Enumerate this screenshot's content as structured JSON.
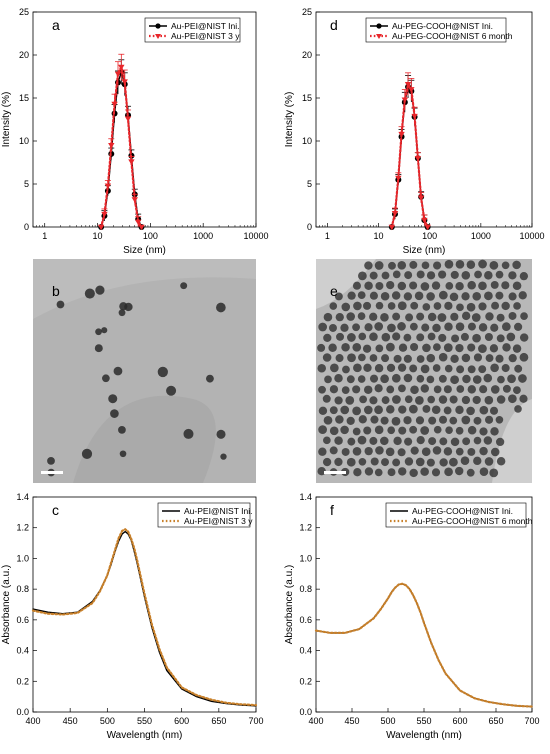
{
  "chart_data": [
    {
      "type": "line",
      "panel": "a",
      "xscale": "log",
      "xlabel": "Size (nm)",
      "ylabel": "Intensity (%)",
      "xlim": [
        0.6,
        10000
      ],
      "ylim": [
        0,
        25
      ],
      "xticks": [
        1,
        10,
        100,
        1000,
        10000
      ],
      "yticks": [
        0,
        5,
        10,
        15,
        20,
        25
      ],
      "legend": "top-left",
      "series": [
        {
          "name": "Au-PEI@NIST Ini.",
          "color": "#000000",
          "style": "solid-circle",
          "x": [
            11.7,
            13.5,
            15.7,
            18.2,
            21,
            24.4,
            28.2,
            32.7,
            37.8,
            43.8,
            50.7,
            58.8,
            68.1
          ],
          "y": [
            0,
            1.3,
            4.2,
            8.5,
            13.2,
            16.8,
            18.0,
            16.6,
            13.0,
            8.3,
            3.8,
            0.9,
            0
          ]
        },
        {
          "name": "Au-PEI@NIST 3 y",
          "color": "#e8262b",
          "style": "dotted-triangle",
          "x": [
            11.7,
            13.5,
            15.7,
            18.2,
            21,
            24.4,
            28.2,
            32.7,
            37.8,
            43.8,
            50.7,
            58.8,
            68.1
          ],
          "y": [
            0,
            1.5,
            4.8,
            9.5,
            14.3,
            17.8,
            18.6,
            16.9,
            12.6,
            7.6,
            3.2,
            0.6,
            0
          ]
        }
      ]
    },
    {
      "type": "line",
      "panel": "d",
      "xscale": "log",
      "xlabel": "Size (nm)",
      "ylabel": "Intensity (%)",
      "xlim": [
        0.6,
        10000
      ],
      "ylim": [
        0,
        25
      ],
      "xticks": [
        1,
        10,
        100,
        1000,
        10000
      ],
      "yticks": [
        0,
        5,
        10,
        15,
        20,
        25
      ],
      "legend": "top-left",
      "series": [
        {
          "name": "Au-PEG-COOH@NIST Ini.",
          "color": "#000000",
          "style": "solid-circle",
          "x": [
            18.2,
            21,
            24.4,
            28.2,
            32.7,
            37.8,
            43.8,
            50.7,
            58.8,
            68.1,
            78.8,
            91.3
          ],
          "y": [
            0,
            1.5,
            5.5,
            10.5,
            14.5,
            16.3,
            15.8,
            12.8,
            8.0,
            3.5,
            0.8,
            0
          ]
        },
        {
          "name": "Au-PEG-COOH@NIST 6 month",
          "color": "#e8262b",
          "style": "dotted-triangle",
          "x": [
            18.2,
            21,
            24.4,
            28.2,
            32.7,
            37.8,
            43.8,
            50.7,
            58.8,
            68.1,
            78.8,
            91.3
          ],
          "y": [
            0,
            1.6,
            5.7,
            10.8,
            14.8,
            16.6,
            16.0,
            12.9,
            8.0,
            3.4,
            0.8,
            0
          ]
        }
      ]
    },
    {
      "type": "line",
      "panel": "c",
      "xscale": "linear",
      "xlabel": "Wavelength (nm)",
      "ylabel": "Absorbance (a.u.)",
      "xlim": [
        400,
        700
      ],
      "ylim": [
        0,
        1.4
      ],
      "xticks": [
        400,
        450,
        500,
        550,
        600,
        650,
        700
      ],
      "yticks": [
        0.0,
        0.2,
        0.4,
        0.6,
        0.8,
        1.0,
        1.2,
        1.4
      ],
      "legend": "top-right",
      "series": [
        {
          "name": "Au-PEI@NIST Ini.",
          "color": "#000000",
          "style": "solid",
          "x": [
            400,
            420,
            440,
            460,
            480,
            490,
            500,
            505,
            510,
            515,
            520,
            524,
            528,
            532,
            536,
            540,
            545,
            550,
            560,
            570,
            580,
            600,
            620,
            640,
            660,
            680,
            700
          ],
          "y": [
            0.67,
            0.65,
            0.64,
            0.65,
            0.72,
            0.79,
            0.89,
            0.96,
            1.04,
            1.11,
            1.16,
            1.175,
            1.16,
            1.12,
            1.05,
            0.97,
            0.86,
            0.75,
            0.55,
            0.39,
            0.27,
            0.15,
            0.1,
            0.07,
            0.055,
            0.045,
            0.04
          ]
        },
        {
          "name": "Au-PEI@NIST 3 y",
          "color": "#c8802a",
          "style": "dotted",
          "x": [
            400,
            420,
            440,
            460,
            480,
            490,
            500,
            505,
            510,
            515,
            520,
            524,
            528,
            532,
            536,
            540,
            545,
            550,
            560,
            570,
            580,
            600,
            620,
            640,
            660,
            680,
            700
          ],
          "y": [
            0.66,
            0.64,
            0.635,
            0.645,
            0.71,
            0.785,
            0.89,
            0.97,
            1.05,
            1.13,
            1.18,
            1.19,
            1.175,
            1.13,
            1.07,
            0.99,
            0.88,
            0.77,
            0.57,
            0.41,
            0.29,
            0.16,
            0.11,
            0.08,
            0.06,
            0.05,
            0.045
          ]
        }
      ]
    },
    {
      "type": "line",
      "panel": "f",
      "xscale": "linear",
      "xlabel": "Wavelength (nm)",
      "ylabel": "Absorbance (a.u.)",
      "xlim": [
        400,
        700
      ],
      "ylim": [
        0,
        1.4
      ],
      "xticks": [
        400,
        450,
        500,
        550,
        600,
        650,
        700
      ],
      "yticks": [
        0.0,
        0.2,
        0.4,
        0.6,
        0.8,
        1.0,
        1.2,
        1.4
      ],
      "legend": "top-right",
      "series": [
        {
          "name": "Au-PEG-COOH@NIST Ini.",
          "color": "#000000",
          "style": "solid",
          "x": [
            400,
            420,
            440,
            460,
            480,
            490,
            500,
            505,
            510,
            515,
            520,
            525,
            530,
            535,
            540,
            545,
            550,
            560,
            570,
            580,
            600,
            620,
            640,
            660,
            680,
            700
          ],
          "y": [
            0.53,
            0.515,
            0.515,
            0.54,
            0.61,
            0.67,
            0.74,
            0.78,
            0.81,
            0.83,
            0.835,
            0.825,
            0.8,
            0.76,
            0.71,
            0.65,
            0.58,
            0.45,
            0.34,
            0.25,
            0.14,
            0.09,
            0.065,
            0.05,
            0.04,
            0.035
          ]
        },
        {
          "name": "Au-PEG-COOH@NIST 6 month",
          "color": "#c8802a",
          "style": "dotted",
          "x": [
            400,
            420,
            440,
            460,
            480,
            490,
            500,
            505,
            510,
            515,
            520,
            525,
            530,
            535,
            540,
            545,
            550,
            560,
            570,
            580,
            600,
            620,
            640,
            660,
            680,
            700
          ],
          "y": [
            0.53,
            0.515,
            0.515,
            0.54,
            0.61,
            0.67,
            0.74,
            0.78,
            0.81,
            0.83,
            0.835,
            0.825,
            0.8,
            0.76,
            0.71,
            0.65,
            0.58,
            0.45,
            0.34,
            0.25,
            0.14,
            0.09,
            0.065,
            0.05,
            0.04,
            0.035
          ]
        }
      ]
    }
  ],
  "micrographs": [
    {
      "panel": "b",
      "background": "#b3b3b3",
      "particle_color": "#2a2a2a"
    },
    {
      "panel": "e",
      "background": "#b8b8b8",
      "particle_color": "#2f2f2f"
    }
  ]
}
